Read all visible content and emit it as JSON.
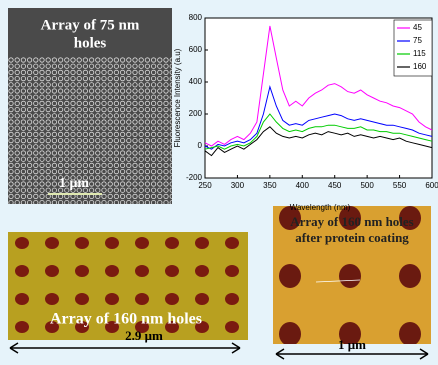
{
  "panels": {
    "sem": {
      "label_lines": [
        "Array of 75 nm",
        "holes"
      ],
      "scale": "1  μm"
    },
    "afm_left": {
      "label": "Array of 160 nm holes",
      "scale": "2.9  μm"
    },
    "afm_right": {
      "label_lines": [
        "Array of 160 nm holes",
        "after protein coating"
      ],
      "scale": "1 μm"
    }
  },
  "chart_data": {
    "type": "line",
    "x_label": "Wavelength (nm)",
    "y_label": "Fluorescence Intensity (a.u)",
    "x": [
      250,
      260,
      270,
      280,
      290,
      300,
      310,
      320,
      330,
      340,
      350,
      360,
      370,
      380,
      390,
      400,
      410,
      420,
      430,
      440,
      450,
      460,
      470,
      480,
      490,
      500,
      510,
      520,
      530,
      540,
      550,
      560,
      570,
      580,
      590,
      600
    ],
    "series": [
      {
        "name": "45",
        "color": "#ff00ff",
        "values": [
          20,
          0,
          30,
          10,
          40,
          60,
          40,
          80,
          150,
          450,
          750,
          550,
          350,
          250,
          280,
          250,
          300,
          330,
          350,
          380,
          390,
          370,
          340,
          330,
          350,
          320,
          300,
          280,
          270,
          250,
          240,
          220,
          200,
          150,
          120,
          100
        ]
      },
      {
        "name": "75",
        "color": "#0000ff",
        "values": [
          0,
          -20,
          10,
          0,
          20,
          30,
          20,
          40,
          80,
          200,
          370,
          250,
          160,
          130,
          140,
          130,
          160,
          170,
          180,
          190,
          200,
          190,
          170,
          160,
          170,
          160,
          150,
          140,
          130,
          130,
          120,
          110,
          100,
          80,
          70,
          60
        ]
      },
      {
        "name": "115",
        "color": "#00cc00",
        "values": [
          -20,
          -10,
          0,
          -20,
          0,
          10,
          0,
          20,
          60,
          150,
          200,
          150,
          110,
          90,
          100,
          90,
          110,
          120,
          120,
          130,
          130,
          120,
          110,
          110,
          120,
          100,
          100,
          90,
          90,
          80,
          80,
          70,
          60,
          50,
          40,
          30
        ]
      },
      {
        "name": "160",
        "color": "#000000",
        "values": [
          -30,
          -60,
          -10,
          -40,
          -20,
          0,
          -20,
          10,
          40,
          90,
          120,
          80,
          60,
          50,
          60,
          50,
          70,
          80,
          70,
          90,
          80,
          70,
          80,
          60,
          70,
          60,
          50,
          60,
          50,
          40,
          50,
          30,
          20,
          10,
          0,
          -10
        ]
      }
    ],
    "xlim": [
      250,
      600
    ],
    "xticks": [
      250,
      300,
      350,
      400,
      450,
      500,
      550,
      600
    ],
    "ylim": [
      -200,
      800
    ],
    "yticks": [
      -200,
      0,
      200,
      400,
      600,
      800
    ],
    "legend": "upper right"
  }
}
